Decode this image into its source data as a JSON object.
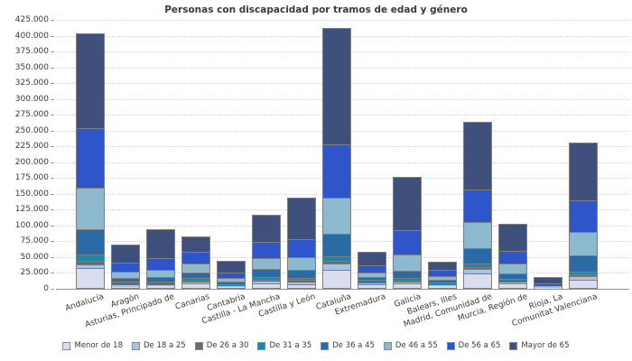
{
  "chart_data": {
    "type": "bar",
    "stacked": true,
    "title": "Personas con discapacidad por tramos de edad y género",
    "categories": [
      "Andalucía",
      "Aragón",
      "Asturias, Principado de",
      "Canarias",
      "Cantabria",
      "Castilla - La Mancha",
      "Castilla y León",
      "Cataluña",
      "Extremadura",
      "Galicia",
      "Balears, Illes",
      "Madrid, Comunidad de",
      "Murcia, Región de",
      "Rioja, La",
      "Comunitat Valenciana"
    ],
    "series": [
      {
        "name": "Menor de 18",
        "color": "#d8ddf0",
        "values": [
          30500,
          2000,
          2500,
          5500,
          1200,
          5500,
          4500,
          27000,
          4000,
          5000,
          2500,
          22000,
          5000,
          400,
          12000
        ]
      },
      {
        "name": "De 18 a 25",
        "color": "#a8c3e6",
        "values": [
          5500,
          2000,
          2000,
          3000,
          900,
          4000,
          4000,
          10000,
          3000,
          3000,
          2000,
          7000,
          4000,
          300,
          4500
        ]
      },
      {
        "name": "De 26 a 30",
        "color": "#6b6b6b",
        "values": [
          4700,
          2500,
          2000,
          2000,
          700,
          2500,
          2500,
          4500,
          1500,
          2500,
          1500,
          3000,
          2000,
          200,
          3500
        ]
      },
      {
        "name": "De 31 a 35",
        "color": "#1988a8",
        "values": [
          10400,
          2000,
          2500,
          4000,
          1300,
          3500,
          3500,
          7500,
          2500,
          3500,
          1000,
          5000,
          2500,
          300,
          4000
        ]
      },
      {
        "name": "De 36 a 45",
        "color": "#2a6aa5",
        "values": [
          39600,
          6000,
          6500,
          8000,
          4300,
          13000,
          12500,
          34500,
          5000,
          11000,
          4500,
          24500,
          8500,
          600,
          26000
        ]
      },
      {
        "name": "De 46 a 55",
        "color": "#8db9ce",
        "values": [
          66800,
          9500,
          11000,
          14500,
          6100,
          17000,
          20500,
          57500,
          7500,
          27000,
          5500,
          40500,
          14500,
          1000,
          37000
        ]
      },
      {
        "name": "De 56 a 65",
        "color": "#2e55c9",
        "values": [
          93000,
          15000,
          19000,
          19000,
          8100,
          26000,
          28500,
          84500,
          10500,
          38500,
          9500,
          52500,
          20000,
          2700,
          50000
        ]
      },
      {
        "name": "Mayor de 65",
        "color": "#40507d",
        "values": [
          150000,
          28500,
          46000,
          23500,
          19400,
          42500,
          65500,
          183500,
          22000,
          83000,
          13500,
          107000,
          43000,
          10500,
          90500
        ]
      }
    ],
    "ylim": [
      0,
      425000
    ],
    "ytick_step": 25000,
    "y_tick_format": "thousands-dot",
    "grid": "horizontal-dotted",
    "legend_position": "bottom",
    "bar_border_color": "#7f7f7f"
  }
}
